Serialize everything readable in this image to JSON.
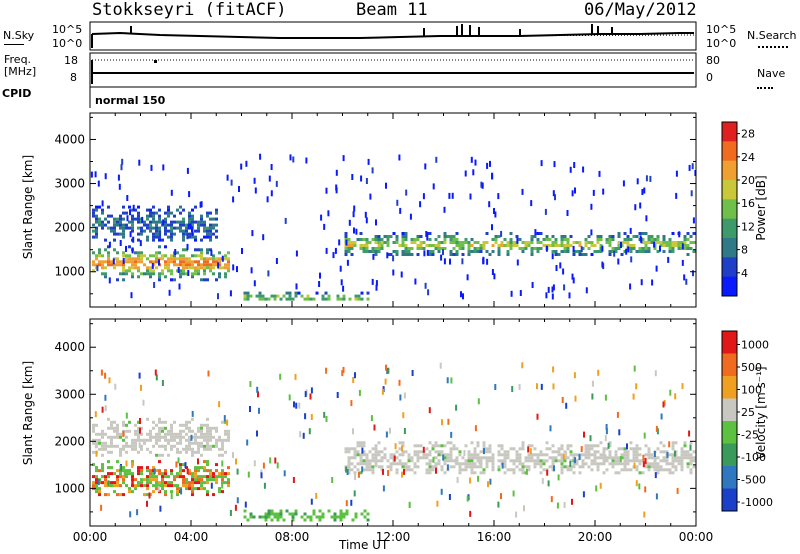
{
  "header": {
    "station": "Stokkseyri (fitACF)",
    "beam": "Beam 11",
    "date": "06/May/2012"
  },
  "panels": {
    "nsky": {
      "label": "N.Sky",
      "tick_hi": "10^5",
      "tick_lo": "10^0",
      "right_label": "N.Search"
    },
    "freq": {
      "label_line1": "Freq.",
      "label_line2": "[MHz]",
      "tick_hi": "18",
      "tick_lo": "8",
      "right_hi": "80",
      "right_lo": "0",
      "right_label": "Nave"
    },
    "cpid": {
      "label": "CPID",
      "mode": "normal 150"
    }
  },
  "chart_data": [
    {
      "type": "heatmap",
      "name": "power",
      "title": "",
      "xlabel": "",
      "ylabel": "Slant Range [km]",
      "xlim": [
        0,
        24
      ],
      "ylim": [
        200,
        4600
      ],
      "x_ticks": [
        "00:00",
        "04:00",
        "08:00",
        "12:00",
        "16:00",
        "20:00",
        "00:00"
      ],
      "y_ticks": [
        1000,
        2000,
        3000,
        4000
      ],
      "colorbar": {
        "label": "Power [dB]",
        "ticks": [
          4,
          8,
          12,
          16,
          20,
          24,
          28
        ],
        "range": [
          0,
          30
        ],
        "colors": [
          "#0a1aff",
          "#1f3fc8",
          "#2f7a86",
          "#3e9a6a",
          "#6fc04a",
          "#c8c83a",
          "#f0a030",
          "#f06a20",
          "#e02020"
        ]
      },
      "features": [
        {
          "label": "E-region echoes 00:00-05:30",
          "t": [
            0.0,
            5.5
          ],
          "range_km": [
            850,
            1600
          ],
          "level": "high"
        },
        {
          "label": "Upper band 00:00-05:00",
          "t": [
            0.0,
            5.0
          ],
          "range_km": [
            1700,
            2500
          ],
          "level": "low"
        },
        {
          "label": "Near-range echoes 06:00-11:00",
          "t": [
            6.0,
            11.0
          ],
          "range_km": [
            350,
            550
          ],
          "level": "medium"
        },
        {
          "label": "F-region band 10:00-24:00",
          "t": [
            10.0,
            24.0
          ],
          "range_km": [
            1400,
            1900
          ],
          "level": "medium"
        }
      ]
    },
    {
      "type": "heatmap",
      "name": "velocity",
      "title": "",
      "xlabel": "Time UT",
      "ylabel": "Slant Range [km]",
      "xlim": [
        0,
        24
      ],
      "ylim": [
        200,
        4600
      ],
      "x_ticks": [
        "00:00",
        "04:00",
        "08:00",
        "12:00",
        "16:00",
        "20:00",
        "00:00"
      ],
      "y_ticks": [
        1000,
        2000,
        3000,
        4000
      ],
      "colorbar": {
        "label": "Velocity [m s⁻¹]",
        "ticks": [
          "1000",
          "500",
          "100",
          "25",
          "-25",
          "-100",
          "-500",
          "-1000"
        ],
        "colors": [
          "#1a3fc8",
          "#2f78c0",
          "#3a9a5a",
          "#5cc040",
          "#c8c8c0",
          "#f0a020",
          "#f06a20",
          "#e01818"
        ]
      },
      "features": [
        {
          "label": "Ground scatter 00:00-05:30",
          "t": [
            0.0,
            5.5
          ],
          "range_km": [
            1700,
            2500
          ],
          "class": "ground"
        },
        {
          "label": "Away flow 00:00-05:30",
          "t": [
            0.0,
            5.5
          ],
          "range_km": [
            850,
            1600
          ],
          "class": "negative"
        },
        {
          "label": "Toward flow 06:00-11:00",
          "t": [
            6.0,
            11.0
          ],
          "range_km": [
            350,
            550
          ],
          "class": "positive"
        },
        {
          "label": "Ground scatter 10:00-24:00",
          "t": [
            10.0,
            24.0
          ],
          "range_km": [
            1300,
            2000
          ],
          "class": "ground"
        }
      ]
    }
  ]
}
